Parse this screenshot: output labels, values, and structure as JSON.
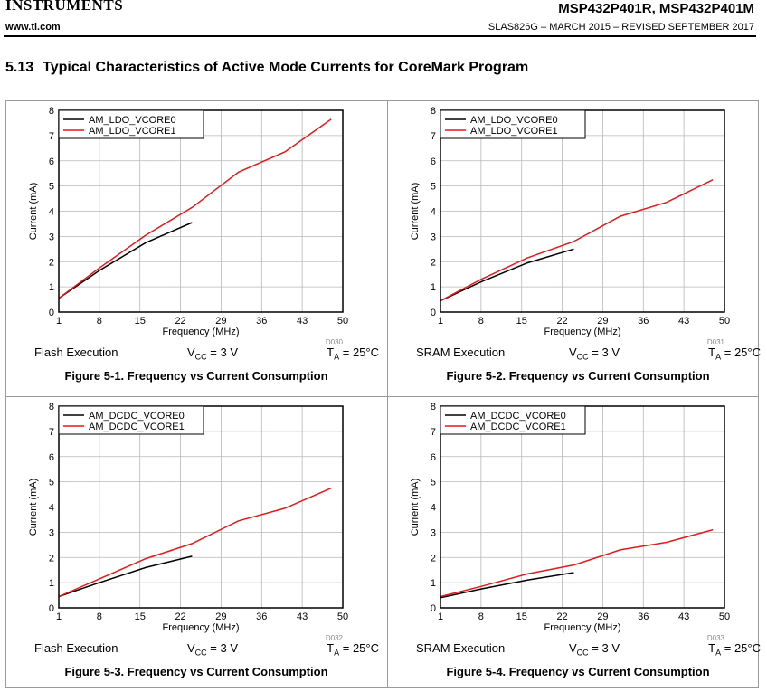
{
  "header": {
    "logo_text": "INSTRUMENTS",
    "part_numbers": "MSP432P401R, MSP432P401M",
    "website": "www.ti.com",
    "doc_info": "SLAS826G – MARCH 2015 – REVISED SEPTEMBER 2017"
  },
  "section": {
    "number": "5.13",
    "title": "Typical Characteristics of Active Mode Currents for CoreMark Program"
  },
  "chart_data": [
    {
      "type": "line",
      "figure_id": "D030",
      "xlabel": "Frequency (MHz)",
      "ylabel": "Current (mA)",
      "xticks": [
        1,
        8,
        15,
        22,
        29,
        36,
        43,
        50
      ],
      "xlim": [
        1,
        50
      ],
      "ylim": [
        0,
        8
      ],
      "yticks": [
        0,
        1,
        2,
        3,
        4,
        5,
        6,
        7,
        8
      ],
      "grid": true,
      "legend_position": "top-left",
      "series": [
        {
          "name": "AM_LDO_VCORE0",
          "color": "#000000",
          "x": [
            1,
            8,
            16,
            24
          ],
          "y": [
            0.55,
            1.65,
            2.75,
            3.55
          ]
        },
        {
          "name": "AM_LDO_VCORE1",
          "color": "#e41a1c",
          "x": [
            1,
            8,
            16,
            24,
            32,
            40,
            48
          ],
          "y": [
            0.55,
            1.75,
            3.05,
            4.15,
            5.55,
            6.35,
            7.65
          ]
        }
      ],
      "condition_left": "Flash Execution",
      "condition_mid_base": "V",
      "condition_mid_sub": "CC",
      "condition_mid_rest": " = 3 V",
      "condition_right_base": "T",
      "condition_right_sub": "A",
      "condition_right_rest": " = 25°C",
      "caption": "Figure 5-1. Frequency vs Current Consumption"
    },
    {
      "type": "line",
      "figure_id": "D031",
      "xlabel": "Frequency (MHz)",
      "ylabel": "Current (mA)",
      "xticks": [
        1,
        8,
        15,
        22,
        29,
        36,
        43,
        50
      ],
      "xlim": [
        1,
        50
      ],
      "ylim": [
        0,
        8
      ],
      "yticks": [
        0,
        1,
        2,
        3,
        4,
        5,
        6,
        7,
        8
      ],
      "grid": true,
      "legend_position": "top-left",
      "series": [
        {
          "name": "AM_LDO_VCORE0",
          "color": "#000000",
          "x": [
            1,
            8,
            16,
            24
          ],
          "y": [
            0.45,
            1.2,
            1.95,
            2.5
          ]
        },
        {
          "name": "AM_LDO_VCORE1",
          "color": "#e41a1c",
          "x": [
            1,
            8,
            16,
            24,
            32,
            40,
            48
          ],
          "y": [
            0.45,
            1.3,
            2.15,
            2.8,
            3.8,
            4.35,
            5.25
          ]
        }
      ],
      "condition_left": "SRAM Execution",
      "condition_mid_base": "V",
      "condition_mid_sub": "CC",
      "condition_mid_rest": " = 3 V",
      "condition_right_base": "T",
      "condition_right_sub": "A",
      "condition_right_rest": " = 25°C",
      "caption": "Figure 5-2. Frequency vs Current Consumption"
    },
    {
      "type": "line",
      "figure_id": "D032",
      "xlabel": "Frequency (MHz)",
      "ylabel": "Current (mA)",
      "xticks": [
        1,
        8,
        15,
        22,
        29,
        36,
        43,
        50
      ],
      "xlim": [
        1,
        50
      ],
      "ylim": [
        0,
        8
      ],
      "yticks": [
        0,
        1,
        2,
        3,
        4,
        5,
        6,
        7,
        8
      ],
      "grid": true,
      "legend_position": "top-left",
      "series": [
        {
          "name": "AM_DCDC_VCORE0",
          "color": "#000000",
          "x": [
            1,
            8,
            16,
            24
          ],
          "y": [
            0.45,
            1.0,
            1.6,
            2.05
          ]
        },
        {
          "name": "AM_DCDC_VCORE1",
          "color": "#e41a1c",
          "x": [
            1,
            8,
            16,
            24,
            32,
            40,
            48
          ],
          "y": [
            0.45,
            1.15,
            1.95,
            2.55,
            3.45,
            3.95,
            4.75
          ]
        }
      ],
      "condition_left": "Flash Execution",
      "condition_mid_base": "V",
      "condition_mid_sub": "CC",
      "condition_mid_rest": " = 3 V",
      "condition_right_base": "T",
      "condition_right_sub": "A",
      "condition_right_rest": " = 25°C",
      "caption": "Figure 5-3. Frequency vs Current Consumption"
    },
    {
      "type": "line",
      "figure_id": "D033",
      "xlabel": "Frequency (MHz)",
      "ylabel": "Current (mA)",
      "xticks": [
        1,
        8,
        15,
        22,
        29,
        36,
        43,
        50
      ],
      "xlim": [
        1,
        50
      ],
      "ylim": [
        0,
        8
      ],
      "yticks": [
        0,
        1,
        2,
        3,
        4,
        5,
        6,
        7,
        8
      ],
      "grid": true,
      "legend_position": "top-left",
      "series": [
        {
          "name": "AM_DCDC_VCORE0",
          "color": "#000000",
          "x": [
            1,
            8,
            16,
            24
          ],
          "y": [
            0.4,
            0.75,
            1.1,
            1.4
          ]
        },
        {
          "name": "AM_DCDC_VCORE1",
          "color": "#e41a1c",
          "x": [
            1,
            8,
            16,
            24,
            32,
            40,
            48
          ],
          "y": [
            0.45,
            0.85,
            1.35,
            1.7,
            2.3,
            2.6,
            3.1
          ]
        }
      ],
      "condition_left": "SRAM Execution",
      "condition_mid_base": "V",
      "condition_mid_sub": "CC",
      "condition_mid_rest": " = 3 V",
      "condition_right_base": "T",
      "condition_right_sub": "A",
      "condition_right_rest": " = 25°C",
      "caption": "Figure 5-4. Frequency vs Current Consumption"
    }
  ]
}
